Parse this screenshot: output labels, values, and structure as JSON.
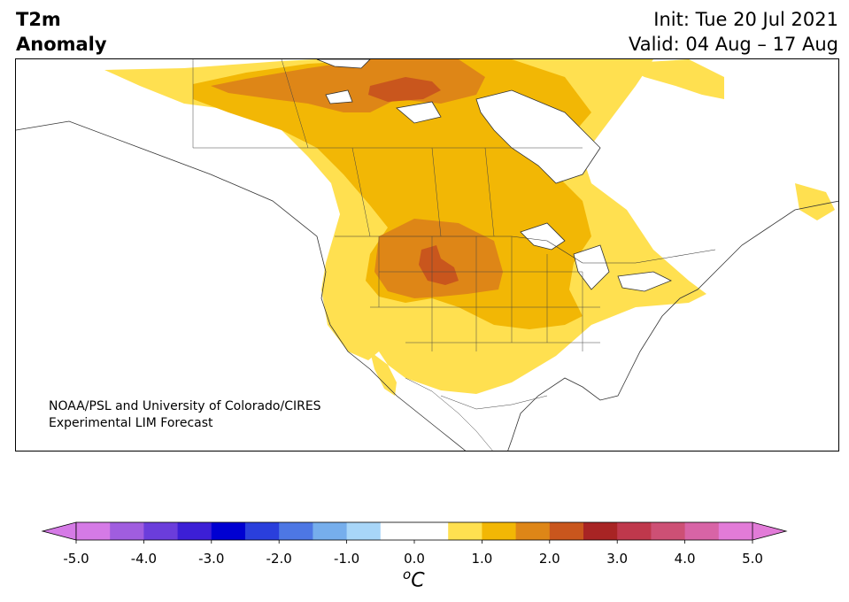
{
  "header": {
    "variable_line1": "T2m",
    "variable_line2": "Anomaly",
    "init": "Init: Tue 20 Jul 2021",
    "valid": "Valid: 04 Aug – 17 Aug"
  },
  "credit": {
    "line1": "NOAA/PSL and University of Colorado/CIRES",
    "line2": "Experimental LIM Forecast"
  },
  "colorbar": {
    "unit_super": "o",
    "unit": "C",
    "ticks": [
      "-5.0",
      "-4.0",
      "-3.0",
      "-2.0",
      "-1.0",
      "0.0",
      "1.0",
      "2.0",
      "3.0",
      "4.0",
      "5.0"
    ],
    "colors": [
      "#d57ae6",
      "#a05ddf",
      "#6b3ddb",
      "#3c1fd6",
      "#0000d2",
      "#2a3fdc",
      "#4d77e4",
      "#76aeec",
      "#a8d6f8",
      "#ffffff",
      "#ffffff",
      "#ffe050",
      "#f2b705",
      "#de8617",
      "#c9561d",
      "#a82424",
      "#bf384c",
      "#cd5075",
      "#d864a6",
      "#e27bd8"
    ],
    "under_color": "#d57ae6",
    "over_color": "#e27bd8"
  }
}
